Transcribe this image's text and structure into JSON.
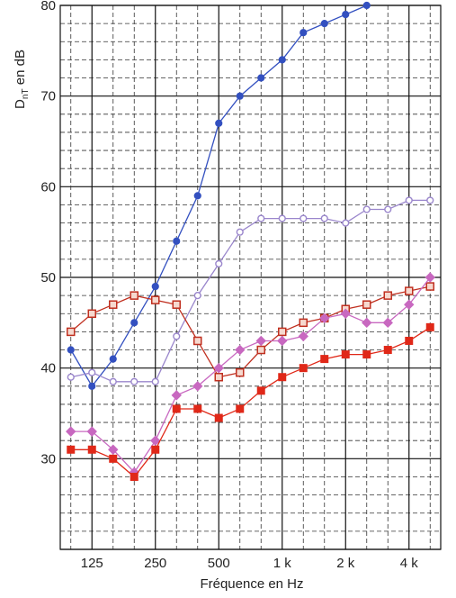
{
  "chart_data": {
    "type": "line",
    "xlabel": "Fréquence en Hz",
    "ylabel_main": "D",
    "ylabel_sub": "nT",
    "ylabel_rest": " en dB",
    "ylim": [
      20,
      80
    ],
    "yticks": [
      30,
      40,
      50,
      60,
      70,
      80
    ],
    "x_bands": [
      "100",
      "125",
      "160",
      "200",
      "250",
      "315",
      "400",
      "500",
      "630",
      "800",
      "1k",
      "1.25k",
      "1.6k",
      "2k",
      "2.5k",
      "3.15k",
      "4k",
      "5k"
    ],
    "x_tick_labels": [
      {
        "band": "125",
        "label": "125"
      },
      {
        "band": "250",
        "label": "250"
      },
      {
        "band": "500",
        "label": "500"
      },
      {
        "band": "1k",
        "label": "1 k"
      },
      {
        "band": "2k",
        "label": "2 k"
      },
      {
        "band": "4k",
        "label": "4 k"
      }
    ],
    "grid": true,
    "series": [
      {
        "color": "#3350c0",
        "marker": "circle-filled",
        "values": [
          42,
          38,
          41,
          45,
          49,
          54,
          59,
          67,
          70,
          72,
          74,
          77,
          78,
          79,
          80,
          null,
          null,
          null
        ]
      },
      {
        "color": "#9a86cc",
        "marker": "circle-open",
        "values": [
          39,
          39.5,
          38.5,
          38.5,
          38.5,
          43.5,
          48,
          51.5,
          55,
          56.5,
          56.5,
          56.5,
          56.5,
          56,
          57.5,
          57.5,
          58.5,
          58.5
        ]
      },
      {
        "color": "#c03020",
        "marker": "square-open",
        "values": [
          44,
          46,
          47,
          48,
          47.5,
          47,
          43,
          39,
          39.5,
          42,
          44,
          45,
          45.5,
          46.5,
          47,
          48,
          48.5,
          49
        ]
      },
      {
        "color": "#c868c0",
        "marker": "diamond-filled",
        "values": [
          33,
          33,
          31,
          28.5,
          32,
          37,
          38,
          40,
          42,
          43,
          43,
          43.5,
          45.5,
          46,
          45,
          45,
          47,
          50
        ]
      },
      {
        "color": "#e02818",
        "marker": "square-filled",
        "values": [
          31,
          31,
          30,
          28,
          31,
          35.5,
          35.5,
          34.5,
          35.5,
          37.5,
          39,
          40,
          41,
          41.5,
          41.5,
          42,
          43,
          44.5
        ]
      }
    ]
  }
}
